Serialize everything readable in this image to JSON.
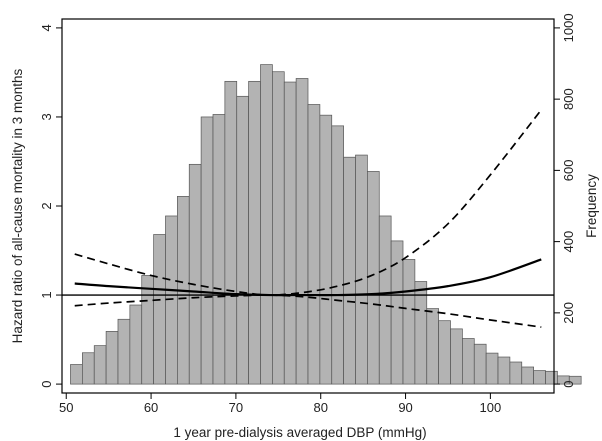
{
  "chart_data": {
    "type": "bar+line",
    "title": "",
    "xlabel": "1 year pre-dialysis averaged DBP (mmHg)",
    "ylabel_left": "Hazard ratio of all-cause mortality in 3 months",
    "ylabel_right": "Frequency",
    "xlim": [
      49.5,
      107.5
    ],
    "ylim_left": [
      -0.1,
      4.1
    ],
    "ylim_right": [
      -25,
      1025
    ],
    "x_ticks": [
      50,
      60,
      70,
      80,
      90,
      100
    ],
    "y_left_ticks": [
      0,
      1,
      2,
      3,
      4
    ],
    "y_right_ticks": [
      0,
      200,
      400,
      600,
      800,
      1000
    ],
    "grid": false,
    "histogram": {
      "bin_start": 50.5,
      "bin_width": 1.4,
      "frequencies": [
        55,
        88,
        108,
        148,
        182,
        222,
        305,
        420,
        472,
        527,
        617,
        750,
        757,
        850,
        808,
        850,
        897,
        877,
        848,
        858,
        785,
        755,
        725,
        637,
        643,
        597,
        472,
        402,
        350,
        288,
        212,
        178,
        155,
        128,
        112,
        87,
        76,
        62,
        48,
        38,
        36,
        23,
        22
      ]
    },
    "series": [
      {
        "style": "solid",
        "x": [
          51,
          55,
          60,
          65,
          70,
          74,
          78,
          82,
          86,
          90,
          95,
          100,
          106
        ],
        "y": [
          1.13,
          1.1,
          1.07,
          1.04,
          1.01,
          1.0,
          1.0,
          1.0,
          1.01,
          1.04,
          1.1,
          1.2,
          1.4
        ]
      },
      {
        "style": "dashed",
        "x": [
          51,
          55,
          60,
          65,
          70,
          74,
          78,
          82,
          86,
          90,
          95,
          100,
          106
        ],
        "y": [
          1.46,
          1.35,
          1.22,
          1.12,
          1.04,
          1.0,
          1.03,
          1.1,
          1.22,
          1.42,
          1.8,
          2.35,
          3.08
        ]
      },
      {
        "style": "dashed",
        "x": [
          51,
          55,
          60,
          65,
          70,
          74,
          78,
          82,
          86,
          90,
          95,
          100,
          106
        ],
        "y": [
          0.88,
          0.91,
          0.94,
          0.97,
          0.99,
          1.0,
          0.98,
          0.94,
          0.9,
          0.85,
          0.79,
          0.72,
          0.64
        ]
      }
    ],
    "reference_line_y": 1
  }
}
